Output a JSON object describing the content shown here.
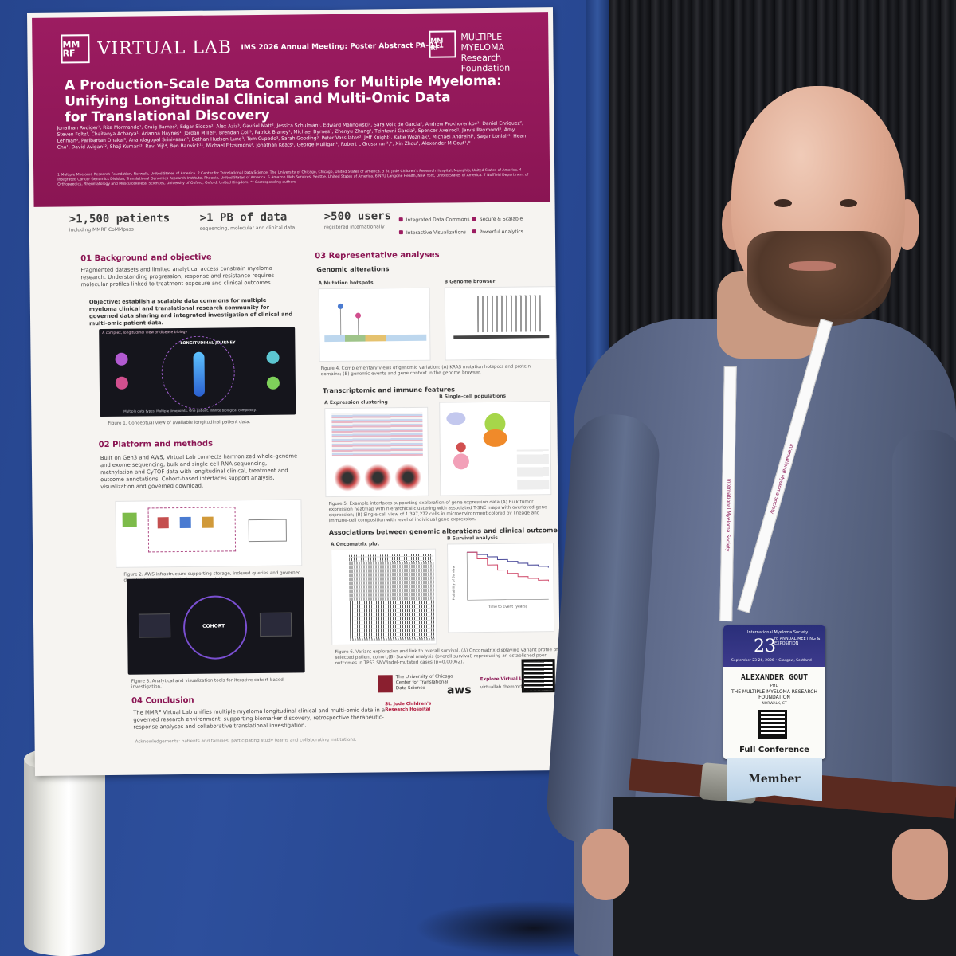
{
  "poster": {
    "logo_mark": "MM RF",
    "brand": "VIRTUAL LAB",
    "meeting": "IMS 2026 Annual Meeting: Poster Abstract PA-011",
    "org_mark": "MM RF",
    "org_name": "MULTIPLE MYELOMA Research Foundation",
    "title_lines": [
      "A Production-Scale Data Commons for Multiple Myeloma:",
      "Unifying Longitudinal Clinical and Multi-Omic Data",
      "for Translational Discovery"
    ],
    "authors": "Jonathan Rodiger¹, Rita Mormando¹, Craig Barnes², Edgar Sioson², Alex Aziz³, Gavriel Matt², Jessica Schulman¹, Edward Malinowski², Sara Volk de Garcia², Andrew Prokhorenkov², Daniel Enriquez², Steven Foltz¹, Chaitanya Acharya¹, Arianna Haynes¹, Jordan Miller¹, Brendan Coll³, Patrick Blaney¹, Michael Byrnes¹, Zhenyu Zhang¹, Tzintzuni Garcia², Spencer Axelrod¹, Jarvis Raymond³, Amy Lehman³, Paribartan Dhakal³, Anandagopal Srinivasan³, Bethan Hudson-Lund³, Tom Cupedo³, Sarah Gooding³, Peter Vassilatos², Jeff Knight¹, Katie Wozniak¹, Michael Andreini¹, Sagar Lonial¹¹, Hearn Cho¹, David Avigan¹², Shaji Kumar¹³, Ravi Vij¹⁴, Ben Barwick¹¹, Michael Fitzsimons², Jonathan Keats², George Mulligan¹, Robert L Grossman²,*, Xin Zhou², Alexander M Gout¹,*",
    "affiliations": "1 Multiple Myeloma Research Foundation, Norwalk, United States of America. 2 Center for Translational Data Science, The University of Chicago, Chicago, United States of America. 3 St. Jude Children's Research Hospital, Memphis, United States of America. 4 Integrated Cancer Genomics Division, Translational Genomics Research Institute, Phoenix, United States of America. 5 Amazon Web Services, Seattle, United States of America. 6 NYU Langone Health, New York, United States of America. 7 Nuffield Department of Orthopaedics, Rheumatology and Musculoskeletal Sciences, University of Oxford, Oxford, United Kingdom. ** Corresponding authors",
    "stats": [
      {
        "big": ">1,500 patients",
        "small": "including MMRF CoMMpass"
      },
      {
        "big": ">1 PB of data",
        "small": "sequencing, molecular and clinical data"
      },
      {
        "big": ">500 users",
        "small": "registered internationally"
      }
    ],
    "features": [
      "Integrated Data Commons",
      "Secure & Scalable",
      "Interactive Visualizations",
      "Powerful Analytics"
    ],
    "s01_title": "01 Background and objective",
    "s01_text": "Fragmented datasets and limited analytical access constrain myeloma research. Understanding progression, response and resistance requires molecular profiles linked to treatment exposure and clinical outcomes.",
    "s01_objective": "Objective: establish a scalable data commons for multiple myeloma clinical and translational research community for governed data sharing and integrated investigation of clinical and multi-omic patient data.",
    "fig1_title": "A complex, longitudinal view of disease biology",
    "fig1_center": "LONGITUDINAL JOURNEY",
    "fig1_footer": "Multiple data types. Multiple timepoints. One patient. Infinite biological complexity.",
    "fig1_caption": "Figure 1. Conceptual view of available longitudinal patient data.",
    "s02_title": "02 Platform and methods",
    "s02_text": "Built on Gen3 and AWS, Virtual Lab connects harmonized whole-genome and exome sequencing, bulk and single-cell RNA sequencing, methylation and CyTOF data with longitudinal clinical, treatment and outcome annotations. Cohort-based interfaces support analysis, visualization and governed download.",
    "fig2_caption": "Figure 2. AWS infrastructure supporting storage, indexed queries and governed download through analytical access on platform.",
    "fig3_center": "COHORT",
    "fig3_caption": "Figure 3. Analytical and visualization tools for iterative cohort-based investigation.",
    "s03_title": "03 Representative analyses",
    "genomic_title": "Genomic alterations",
    "mut_label": "A Mutation hotspots",
    "genome_label": "B Genome browser",
    "fig4_caption": "Figure 4. Complementary views of genomic variation: (A) KRAS mutation hotspots and protein domains; (B) genomic events and gene context in the genome browser.",
    "transcript_title": "Transcriptomic and immune features",
    "expr_label": "A Expression clustering",
    "sc_label": "B Single-cell populations",
    "fig5_caption": "Figure 5. Example interfaces supporting exploration of gene expression data (A) Bulk tumor expression heatmap with hierarchical clustering with associated T-SNE maps with overlayed gene expression; (B) Single-cell view of 1,397,272 cells in microenvironment colored by lineage and immune-cell composition with level of individual gene expression.",
    "assoc_title": "Associations between genomic alterations and clinical outcomes",
    "onco_label": "A Oncomatrix plot",
    "surv_label": "B Survival analysis",
    "surv_ylabel": "Probability of Survival",
    "surv_xlabel": "Time to Event (years)",
    "fig6_caption": "Figure 6. Variant exploration and link to overall survival. (A) Oncomatrix displaying variant profile of selected patient cohort;(B) Survival analysis (overall survival) reproducing an established poor outcomes in TP53 SNV/indel-mutated cases (p=0.00062).",
    "uchicago": "The University of Chicago Center for Translational Data Science",
    "stjude": "St. Jude Children's Research Hospital",
    "aws": "aws",
    "explore_title": "Explore Virtual Lab",
    "explore_url": "virtuallab.themmrf.org",
    "s04_title": "04 Conclusion",
    "s04_text": "The MMRF Virtual Lab unifies multiple myeloma longitudinal clinical and multi-omic data in a governed research environment, supporting biomarker discovery, retrospective therapeutic-response analyses and collaborative translational investigation.",
    "ack": "Acknowledgements: patients and families, participating study teams and collaborating institutions."
  },
  "lanyard_text": "International Myeloma Society",
  "badge": {
    "society": "International Myeloma Society",
    "number": "23",
    "meeting": "rd ANNUAL MEETING & EXPOSITION",
    "dates": "September 23-26, 2026 • Glasgow, Scotland",
    "name": "ALEXANDER GOUT",
    "degree": "PHD",
    "org": "THE MULTIPLE MYELOMA RESEARCH FOUNDATION",
    "city": "NORWALK, CT",
    "type": "Full Conference",
    "ribbon": "Member"
  },
  "colors": {
    "poster_accent": "#9c1c61",
    "board_blue": "#2d4f9c",
    "shirt": "#5e6a89"
  },
  "chart_data": {
    "type": "line",
    "title": "Survival analysis",
    "xlabel": "Time to Event (years)",
    "ylabel": "Probability of Survival",
    "ylim": [
      0,
      1
    ],
    "series": [
      {
        "x": [
          0,
          1,
          2,
          3,
          4,
          5,
          6,
          7,
          8
        ],
        "values": [
          1.0,
          0.95,
          0.9,
          0.84,
          0.8,
          0.76,
          0.72,
          0.69,
          0.66
        ]
      },
      {
        "x": [
          0,
          1,
          2,
          3,
          4,
          5,
          6,
          7,
          8
        ],
        "values": [
          1.0,
          0.86,
          0.73,
          0.62,
          0.55,
          0.48,
          0.44,
          0.4,
          0.38
        ]
      }
    ]
  }
}
